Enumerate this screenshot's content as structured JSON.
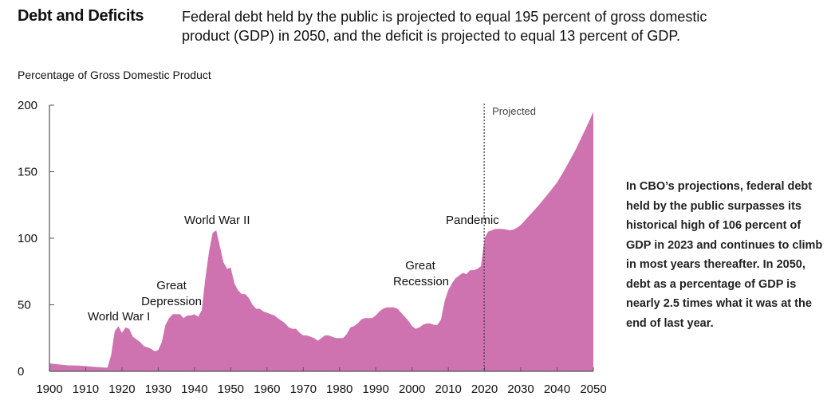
{
  "header": {
    "title": "Debt and Deficits",
    "subtitle": "Federal debt held by the public is projected to equal 195 percent of gross domestic product (GDP) in 2050, and the deficit is projected to equal 13 percent of GDP."
  },
  "side_note": "In CBO’s projections, federal debt held by the public surpasses its historical high of 106 percent of GDP in 2023 and continues to climb in most years thereafter. In 2050, debt as a percentage of GDP is nearly 2.5 times what it was at the end of last year.",
  "chart_data": {
    "type": "area",
    "title": "",
    "ylabel": "Percentage of Gross Domestic Product",
    "xlabel": "",
    "xlim": [
      1900,
      2050
    ],
    "ylim": [
      0,
      200
    ],
    "xticks": [
      1900,
      1910,
      1920,
      1930,
      1940,
      1950,
      1960,
      1970,
      1980,
      1990,
      2000,
      2010,
      2020,
      2030,
      2040,
      2050
    ],
    "yticks": [
      0,
      50,
      100,
      150,
      200
    ],
    "grid": false,
    "color": "#cf72b0",
    "projection_start": 2020,
    "projection_label": "Projected",
    "annotations": [
      {
        "text": "World War I",
        "year": 1918
      },
      {
        "text": "Great Depression",
        "year": 1933
      },
      {
        "text": "World War II",
        "year": 1946
      },
      {
        "text": "Great Recession",
        "year": 2009
      },
      {
        "text": "Pandemic",
        "year": 2020
      }
    ],
    "series": [
      {
        "name": "Federal debt held by the public",
        "points": [
          [
            1900,
            6
          ],
          [
            1905,
            4.5
          ],
          [
            1908,
            4.3
          ],
          [
            1912,
            3.5
          ],
          [
            1916,
            2.7
          ],
          [
            1917,
            12
          ],
          [
            1918,
            30
          ],
          [
            1919,
            34
          ],
          [
            1920,
            29
          ],
          [
            1921,
            33
          ],
          [
            1922,
            32
          ],
          [
            1923,
            26
          ],
          [
            1924,
            24
          ],
          [
            1925,
            22
          ],
          [
            1926,
            19
          ],
          [
            1927,
            18
          ],
          [
            1928,
            17
          ],
          [
            1929,
            15
          ],
          [
            1930,
            16
          ],
          [
            1931,
            22
          ],
          [
            1932,
            35
          ],
          [
            1933,
            40
          ],
          [
            1934,
            43
          ],
          [
            1935,
            43
          ],
          [
            1936,
            43
          ],
          [
            1937,
            40
          ],
          [
            1938,
            42
          ],
          [
            1939,
            42
          ],
          [
            1940,
            43
          ],
          [
            1941,
            41
          ],
          [
            1942,
            46
          ],
          [
            1943,
            70
          ],
          [
            1944,
            90
          ],
          [
            1945,
            104
          ],
          [
            1946,
            106
          ],
          [
            1947,
            94
          ],
          [
            1948,
            82
          ],
          [
            1949,
            77
          ],
          [
            1950,
            78
          ],
          [
            1951,
            66
          ],
          [
            1952,
            61
          ],
          [
            1953,
            58
          ],
          [
            1954,
            58
          ],
          [
            1955,
            55
          ],
          [
            1956,
            50
          ],
          [
            1957,
            47
          ],
          [
            1958,
            47
          ],
          [
            1959,
            45
          ],
          [
            1960,
            44
          ],
          [
            1961,
            43
          ],
          [
            1962,
            42
          ],
          [
            1963,
            40
          ],
          [
            1964,
            38
          ],
          [
            1965,
            36
          ],
          [
            1966,
            33
          ],
          [
            1967,
            32
          ],
          [
            1968,
            32
          ],
          [
            1969,
            29
          ],
          [
            1970,
            27
          ],
          [
            1971,
            27
          ],
          [
            1972,
            26
          ],
          [
            1973,
            25
          ],
          [
            1974,
            23
          ],
          [
            1975,
            25
          ],
          [
            1976,
            27
          ],
          [
            1977,
            27
          ],
          [
            1978,
            26
          ],
          [
            1979,
            25
          ],
          [
            1980,
            25
          ],
          [
            1981,
            25
          ],
          [
            1982,
            28
          ],
          [
            1983,
            33
          ],
          [
            1984,
            34
          ],
          [
            1985,
            36
          ],
          [
            1986,
            39
          ],
          [
            1987,
            40
          ],
          [
            1988,
            40
          ],
          [
            1989,
            40
          ],
          [
            1990,
            42
          ],
          [
            1991,
            45
          ],
          [
            1992,
            47
          ],
          [
            1993,
            48
          ],
          [
            1994,
            48
          ],
          [
            1995,
            48
          ],
          [
            1996,
            47
          ],
          [
            1997,
            44
          ],
          [
            1998,
            41
          ],
          [
            1999,
            38
          ],
          [
            2000,
            34
          ],
          [
            2001,
            32
          ],
          [
            2002,
            33
          ],
          [
            2003,
            35
          ],
          [
            2004,
            36
          ],
          [
            2005,
            36
          ],
          [
            2006,
            35
          ],
          [
            2007,
            35
          ],
          [
            2008,
            39
          ],
          [
            2009,
            53
          ],
          [
            2010,
            61
          ],
          [
            2011,
            66
          ],
          [
            2012,
            70
          ],
          [
            2013,
            72
          ],
          [
            2014,
            74
          ],
          [
            2015,
            73
          ],
          [
            2016,
            76
          ],
          [
            2017,
            76
          ],
          [
            2018,
            77
          ],
          [
            2019,
            79
          ],
          [
            2020,
            100
          ],
          [
            2021,
            105
          ],
          [
            2022,
            106
          ],
          [
            2023,
            107
          ],
          [
            2024,
            107
          ],
          [
            2025,
            107
          ],
          [
            2026,
            106.5
          ],
          [
            2027,
            106
          ],
          [
            2028,
            106.5
          ],
          [
            2029,
            108
          ],
          [
            2030,
            110
          ],
          [
            2032,
            116
          ],
          [
            2035,
            125
          ],
          [
            2038,
            135
          ],
          [
            2040,
            142
          ],
          [
            2042,
            151
          ],
          [
            2045,
            166
          ],
          [
            2048,
            183
          ],
          [
            2050,
            195
          ]
        ]
      }
    ]
  }
}
